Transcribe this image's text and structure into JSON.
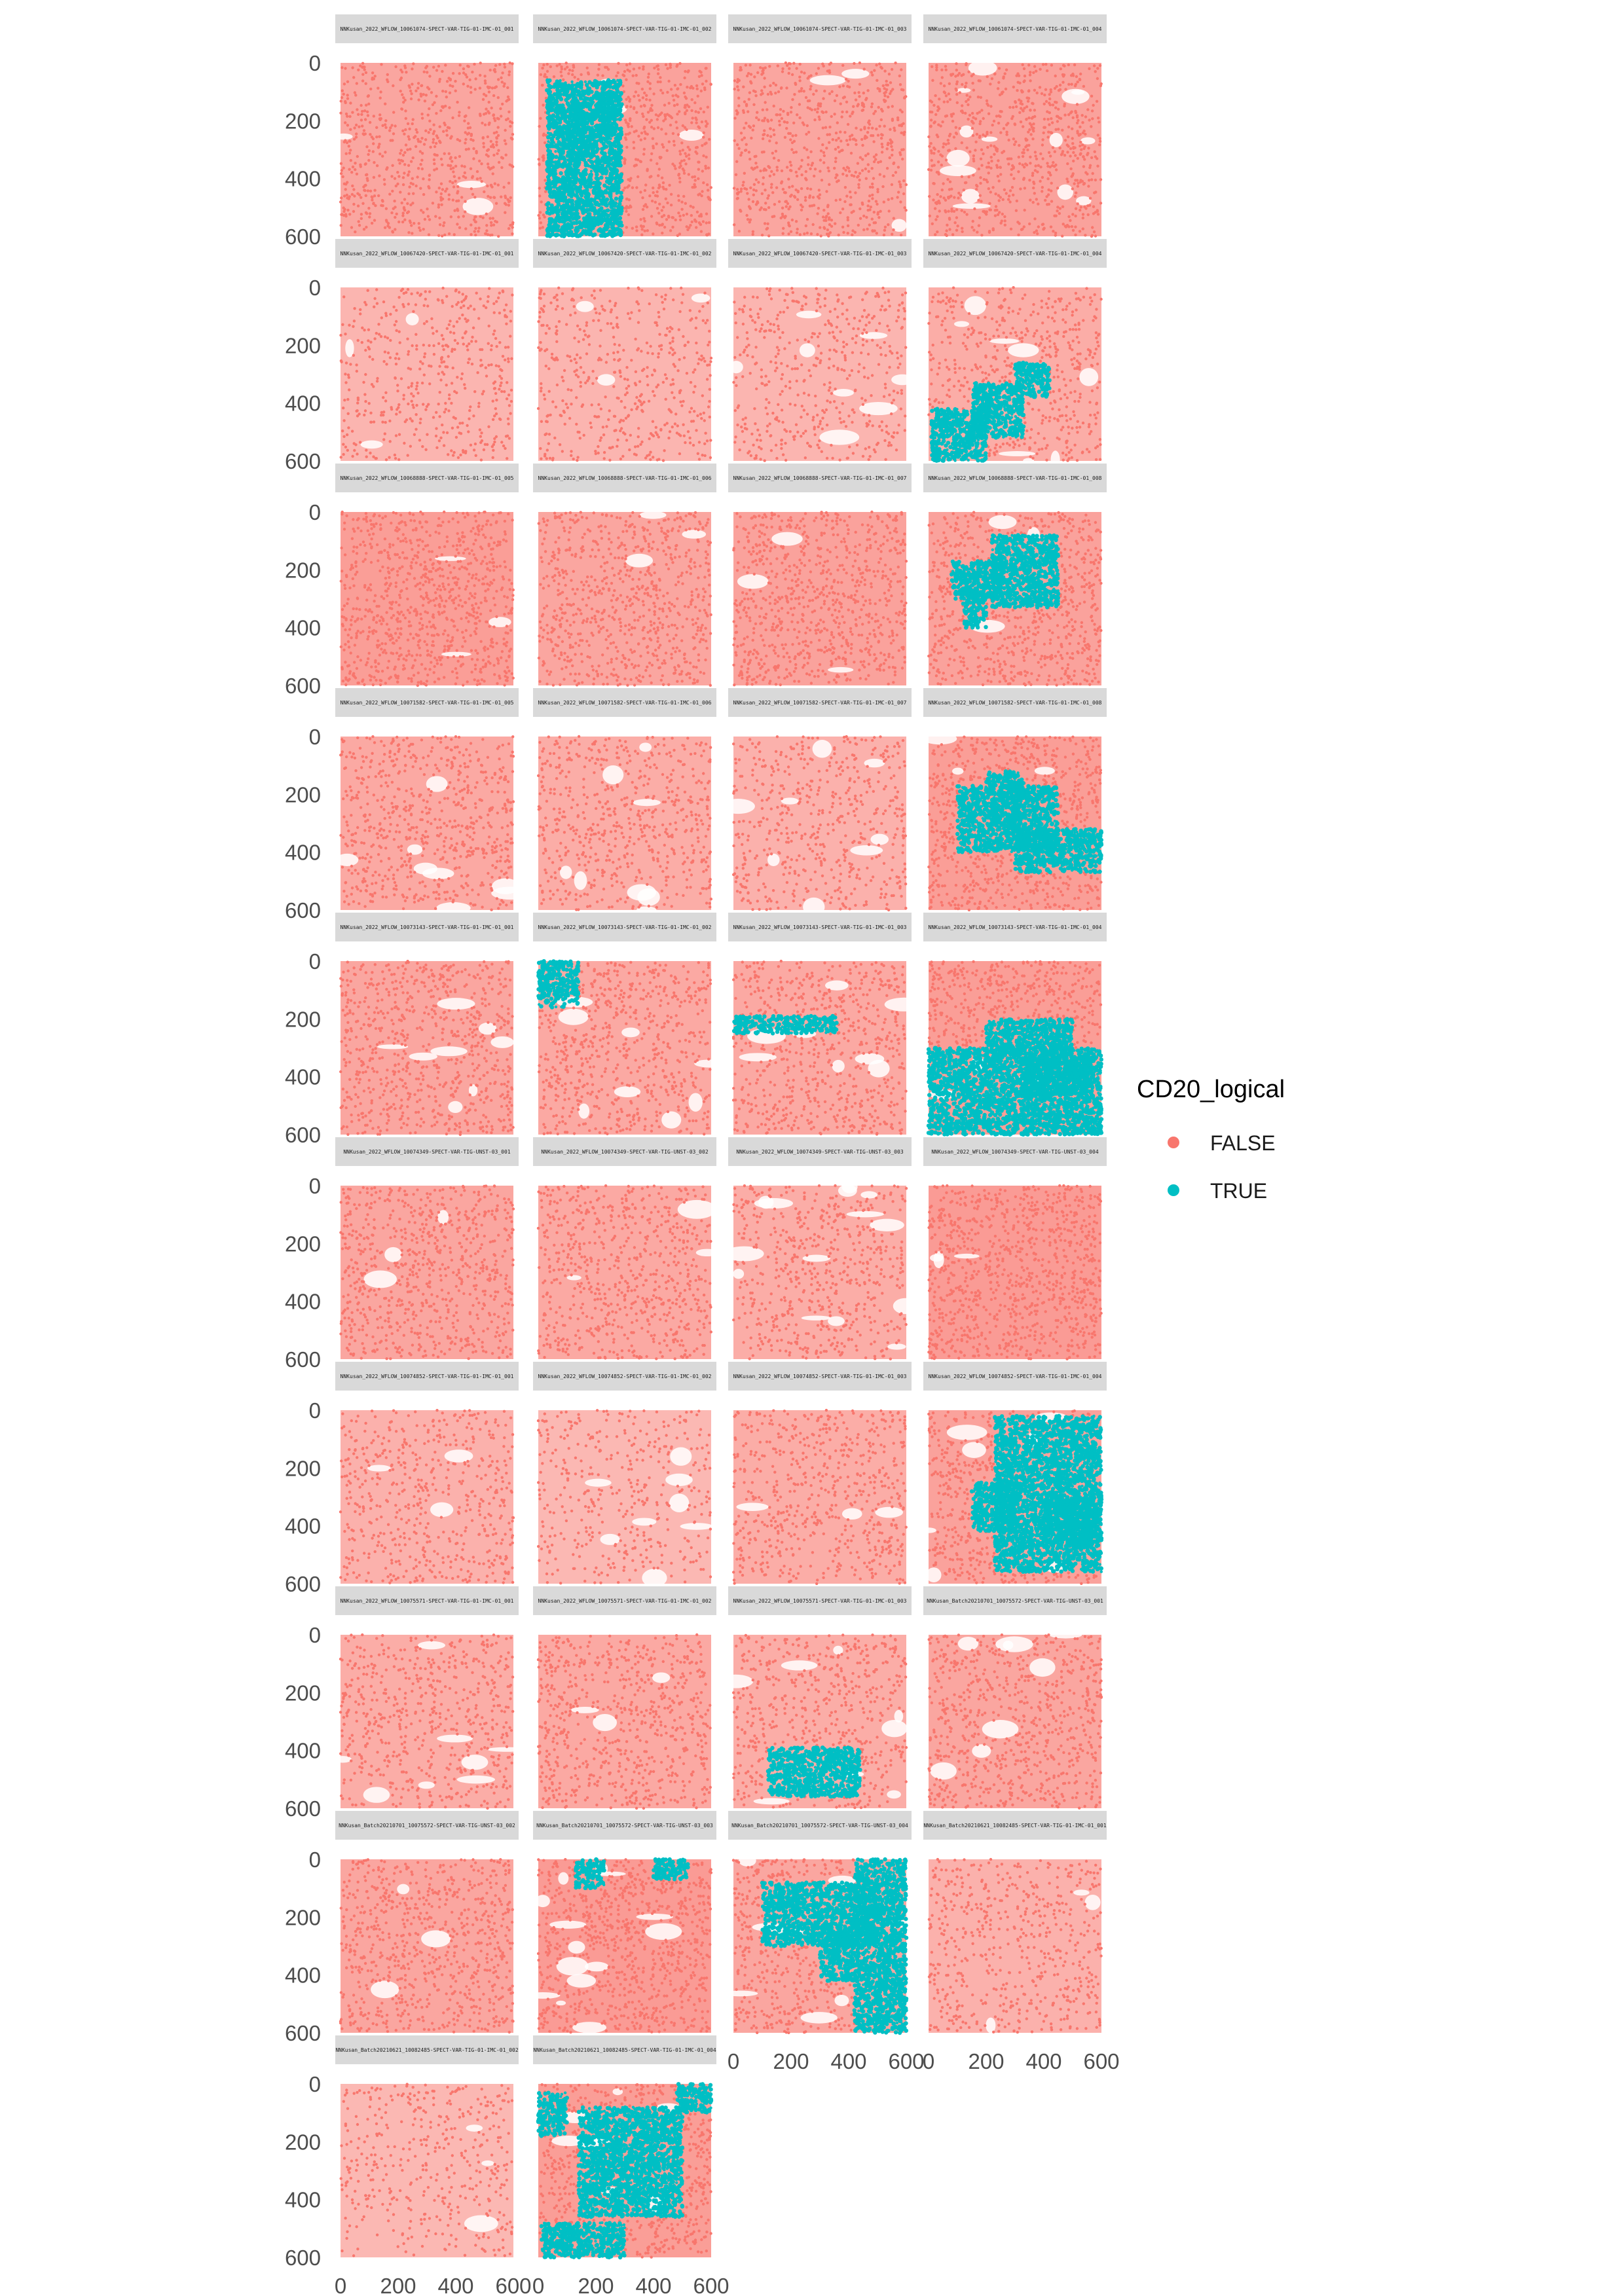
{
  "chart_data": {
    "type": "scatter",
    "facet_layout": {
      "ncol": 4,
      "nrow": 10
    },
    "xlim": [
      0,
      600
    ],
    "ylim": [
      0,
      600
    ],
    "y_reversed": true,
    "x_ticks": [
      "0",
      "200",
      "400",
      "600"
    ],
    "y_ticks": [
      "0",
      "200",
      "400",
      "600"
    ],
    "grid": false,
    "legend": {
      "title": "CD20_logical",
      "position": "right",
      "entries": [
        {
          "label": "FALSE",
          "color": "#F8766D"
        },
        {
          "label": "TRUE",
          "color": "#00BFC4"
        }
      ]
    },
    "panels": [
      {
        "strip": "NNKusan_2022_WFLOW_10061074-SPECT-VAR-TIG-01-IMC-01_001",
        "density": 0.55,
        "holes": "few",
        "true_regions": []
      },
      {
        "strip": "NNKusan_2022_WFLOW_10061074-SPECT-VAR-TIG-01-IMC-01_002",
        "density": 0.6,
        "holes": "few",
        "true_regions": [
          [
            30,
            290,
            60,
            600
          ],
          [
            120,
            170,
            140,
            300
          ],
          [
            200,
            270,
            100,
            250
          ]
        ]
      },
      {
        "strip": "NNKusan_2022_WFLOW_10061074-SPECT-VAR-TIG-01-IMC-01_003",
        "density": 0.55,
        "holes": "few",
        "true_regions": []
      },
      {
        "strip": "NNKusan_2022_WFLOW_10061074-SPECT-VAR-TIG-01-IMC-01_004",
        "density": 0.6,
        "holes": "many",
        "true_regions": []
      },
      {
        "strip": "NNKusan_2022_WFLOW_10067420-SPECT-VAR-TIG-01-IMC-01_001",
        "density": 0.35,
        "holes": "few",
        "true_regions": []
      },
      {
        "strip": "NNKusan_2022_WFLOW_10067420-SPECT-VAR-TIG-01-IMC-01_002",
        "density": 0.35,
        "holes": "few",
        "true_regions": []
      },
      {
        "strip": "NNKusan_2022_WFLOW_10067420-SPECT-VAR-TIG-01-IMC-01_003",
        "density": 0.35,
        "holes": "some",
        "true_regions": []
      },
      {
        "strip": "NNKusan_2022_WFLOW_10067420-SPECT-VAR-TIG-01-IMC-01_004",
        "density": 0.45,
        "holes": "some",
        "true_regions": [
          [
            10,
            200,
            420,
            600
          ],
          [
            150,
            330,
            330,
            520
          ],
          [
            300,
            420,
            260,
            380
          ]
        ]
      },
      {
        "strip": "NNKusan_2022_WFLOW_10068888-SPECT-VAR-TIG-01-IMC-01_005",
        "density": 0.65,
        "holes": "few",
        "true_regions": []
      },
      {
        "strip": "NNKusan_2022_WFLOW_10068888-SPECT-VAR-TIG-01-IMC-01_006",
        "density": 0.55,
        "holes": "few",
        "true_regions": []
      },
      {
        "strip": "NNKusan_2022_WFLOW_10068888-SPECT-VAR-TIG-01-IMC-01_007",
        "density": 0.6,
        "holes": "few",
        "true_regions": []
      },
      {
        "strip": "NNKusan_2022_WFLOW_10068888-SPECT-VAR-TIG-01-IMC-01_008",
        "density": 0.6,
        "holes": "few",
        "true_regions": [
          [
            80,
            250,
            170,
            300
          ],
          [
            220,
            450,
            80,
            330
          ],
          [
            120,
            200,
            280,
            400
          ]
        ]
      },
      {
        "strip": "NNKusan_2022_WFLOW_10071582-SPECT-VAR-TIG-01-IMC-01_005",
        "density": 0.5,
        "holes": "some",
        "true_regions": []
      },
      {
        "strip": "NNKusan_2022_WFLOW_10071582-SPECT-VAR-TIG-01-IMC-01_006",
        "density": 0.45,
        "holes": "some",
        "true_regions": []
      },
      {
        "strip": "NNKusan_2022_WFLOW_10071582-SPECT-VAR-TIG-01-IMC-01_007",
        "density": 0.4,
        "holes": "some",
        "true_regions": []
      },
      {
        "strip": "NNKusan_2022_WFLOW_10071582-SPECT-VAR-TIG-01-IMC-01_008",
        "density": 0.65,
        "holes": "few",
        "true_regions": [
          [
            100,
            450,
            170,
            400
          ],
          [
            300,
            600,
            320,
            470
          ],
          [
            200,
            330,
            120,
            200
          ]
        ]
      },
      {
        "strip": "NNKusan_2022_WFLOW_10073143-SPECT-VAR-TIG-01-IMC-01_001",
        "density": 0.55,
        "holes": "some",
        "true_regions": []
      },
      {
        "strip": "NNKusan_2022_WFLOW_10073143-SPECT-VAR-TIG-01-IMC-01_002",
        "density": 0.5,
        "holes": "some",
        "true_regions": [
          [
            0,
            140,
            0,
            160
          ]
        ]
      },
      {
        "strip": "NNKusan_2022_WFLOW_10073143-SPECT-VAR-TIG-01-IMC-01_003",
        "density": 0.5,
        "holes": "some",
        "true_regions": [
          [
            0,
            360,
            190,
            250
          ]
        ]
      },
      {
        "strip": "NNKusan_2022_WFLOW_10073143-SPECT-VAR-TIG-01-IMC-01_004",
        "density": 0.65,
        "holes": "few",
        "true_regions": [
          [
            0,
            600,
            300,
            600
          ],
          [
            200,
            500,
            200,
            320
          ],
          [
            320,
            560,
            330,
            460
          ]
        ]
      },
      {
        "strip": "NNKusan_2022_WFLOW_10074349-SPECT-VAR-TIG-UNST-03_001",
        "density": 0.55,
        "holes": "few",
        "true_regions": []
      },
      {
        "strip": "NNKusan_2022_WFLOW_10074349-SPECT-VAR-TIG-UNST-03_002",
        "density": 0.5,
        "holes": "few",
        "true_regions": []
      },
      {
        "strip": "NNKusan_2022_WFLOW_10074349-SPECT-VAR-TIG-UNST-03_003",
        "density": 0.45,
        "holes": "many",
        "true_regions": []
      },
      {
        "strip": "NNKusan_2022_WFLOW_10074349-SPECT-VAR-TIG-UNST-03_004",
        "density": 0.7,
        "holes": "few",
        "true_regions": []
      },
      {
        "strip": "NNKusan_2022_WFLOW_10074852-SPECT-VAR-TIG-01-IMC-01_001",
        "density": 0.4,
        "holes": "few",
        "true_regions": []
      },
      {
        "strip": "NNKusan_2022_WFLOW_10074852-SPECT-VAR-TIG-01-IMC-01_002",
        "density": 0.3,
        "holes": "some",
        "true_regions": []
      },
      {
        "strip": "NNKusan_2022_WFLOW_10074852-SPECT-VAR-TIG-01-IMC-01_003",
        "density": 0.45,
        "holes": "few",
        "true_regions": []
      },
      {
        "strip": "NNKusan_2022_WFLOW_10074852-SPECT-VAR-TIG-01-IMC-01_004",
        "density": 0.6,
        "holes": "some",
        "true_regions": [
          [
            230,
            600,
            20,
            560
          ],
          [
            150,
            300,
            250,
            420
          ],
          [
            400,
            600,
            300,
            470
          ]
        ]
      },
      {
        "strip": "NNKusan_2022_WFLOW_10075571-SPECT-VAR-TIG-01-IMC-01_001",
        "density": 0.45,
        "holes": "some",
        "true_regions": []
      },
      {
        "strip": "NNKusan_2022_WFLOW_10075571-SPECT-VAR-TIG-01-IMC-01_002",
        "density": 0.5,
        "holes": "few",
        "true_regions": []
      },
      {
        "strip": "NNKusan_2022_WFLOW_10075571-SPECT-VAR-TIG-01-IMC-01_003",
        "density": 0.45,
        "holes": "some",
        "true_regions": [
          [
            120,
            440,
            390,
            560
          ]
        ]
      },
      {
        "strip": "NNKusan_Batch20210701_10075572-SPECT-VAR-TIG-UNST-03_001",
        "density": 0.55,
        "holes": "some",
        "true_regions": []
      },
      {
        "strip": "NNKusan_Batch20210701_10075572-SPECT-VAR-TIG-UNST-03_002",
        "density": 0.55,
        "holes": "few",
        "true_regions": []
      },
      {
        "strip": "NNKusan_Batch20210701_10075572-SPECT-VAR-TIG-UNST-03_003",
        "density": 0.7,
        "holes": "many",
        "true_regions": [
          [
            130,
            230,
            0,
            100
          ],
          [
            400,
            520,
            0,
            70
          ]
        ]
      },
      {
        "strip": "NNKusan_Batch20210701_10075572-SPECT-VAR-TIG-UNST-03_004",
        "density": 0.55,
        "holes": "some",
        "true_regions": [
          [
            100,
            500,
            80,
            300
          ],
          [
            420,
            600,
            0,
            600
          ],
          [
            300,
            420,
            250,
            420
          ]
        ]
      },
      {
        "strip": "NNKusan_Batch20210621_10082485-SPECT-VAR-TIG-01-IMC-01_001",
        "density": 0.4,
        "holes": "few",
        "true_regions": []
      },
      {
        "strip": "NNKusan_Batch20210621_10082485-SPECT-VAR-TIG-01-IMC-01_002",
        "density": 0.3,
        "holes": "few",
        "true_regions": []
      },
      {
        "strip": "NNKusan_Batch20210621_10082485-SPECT-VAR-TIG-01-IMC-01_004",
        "density": 0.65,
        "holes": "some",
        "true_regions": [
          [
            140,
            500,
            80,
            460
          ],
          [
            0,
            100,
            30,
            180
          ],
          [
            480,
            600,
            0,
            100
          ],
          [
            10,
            300,
            480,
            600
          ]
        ]
      }
    ]
  }
}
